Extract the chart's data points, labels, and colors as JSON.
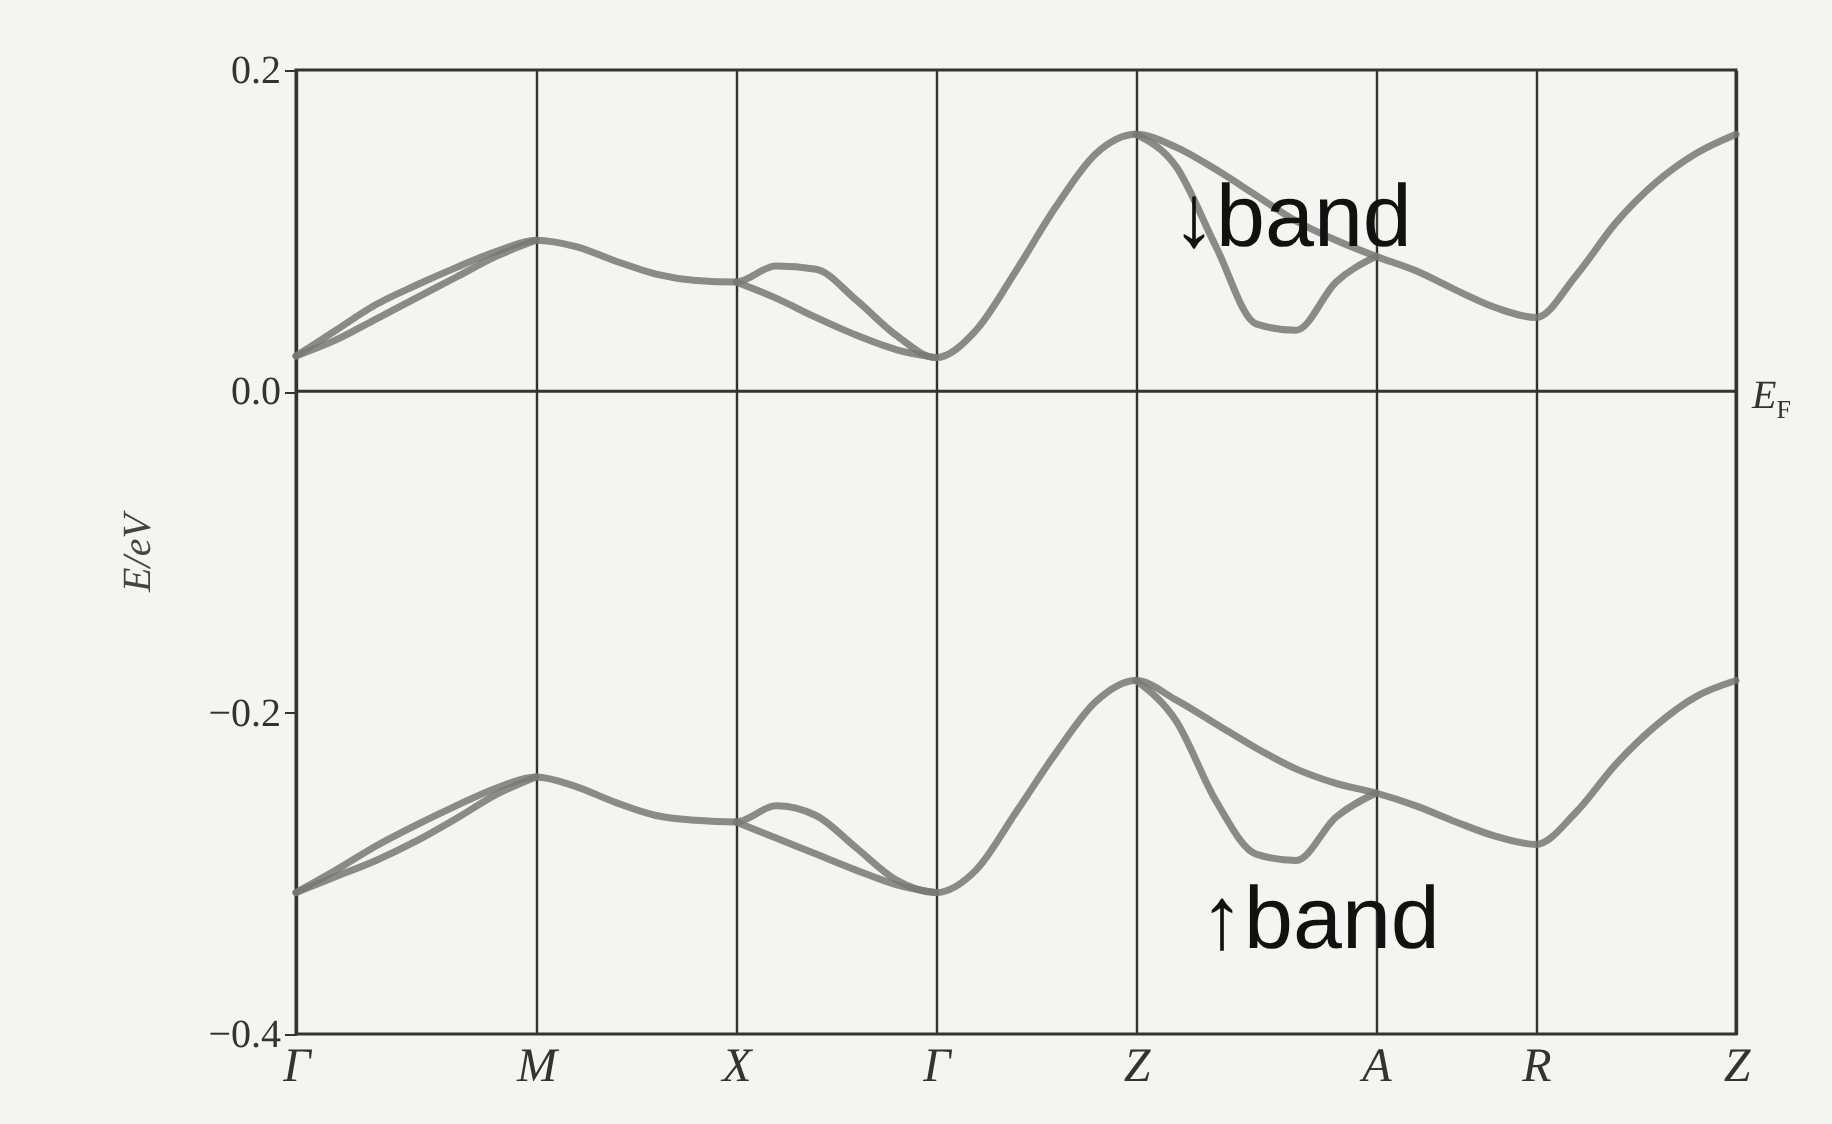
{
  "chart_data": {
    "type": "line",
    "ylabel": "E/eV",
    "categories": [
      "Γ",
      null,
      null,
      null,
      null,
      null,
      "M",
      null,
      null,
      null,
      null,
      "X",
      null,
      null,
      null,
      null,
      "Γ",
      null,
      null,
      null,
      null,
      "Z",
      null,
      null,
      null,
      null,
      null,
      "A",
      null,
      null,
      null,
      "R",
      null,
      null,
      null,
      null,
      "Z"
    ],
    "ylim": [
      -0.4,
      0.2
    ],
    "yticks": [
      0.2,
      {
        "value": 0,
        "label": "0.0"
      },
      -0.2,
      -0.4
    ],
    "grid": "x",
    "marker": "none",
    "line_style": "solid",
    "ref_lines": [
      {
        "axis": "y",
        "value": 0,
        "label": "E$_{F}$",
        "color": "#333333"
      }
    ],
    "annotations": [
      "↓band",
      "↑band"
    ],
    "series": [
      {
        "color": "#777777",
        "values": [
          0.022,
          0.038,
          0.054,
          0.066,
          0.077,
          0.087,
          0.094,
          0.09,
          0.081,
          0.073,
          0.069,
          0.068,
          0.078,
          0.076,
          0.057,
          0.035,
          0.021,
          0.038,
          0.075,
          0.115,
          0.148,
          0.16,
          0.152,
          0.138,
          0.122,
          0.106,
          0.094,
          0.084,
          0.075,
          0.063,
          0.052,
          0.046,
          0.072,
          0.105,
          0.13,
          0.148,
          0.16
        ]
      },
      {
        "color": "#777777",
        "values": [
          0.022,
          0.032,
          0.045,
          0.058,
          0.071,
          0.084,
          0.094,
          null,
          null,
          null,
          null,
          0.068,
          0.058,
          0.046,
          0.035,
          0.026,
          0.021,
          null,
          null,
          null,
          null,
          0.16,
          0.14,
          0.09,
          0.042,
          0.038,
          0.068,
          0.084,
          null,
          null,
          null,
          null,
          null,
          null,
          null,
          null,
          null
        ]
      },
      {
        "color": "#777777",
        "values": [
          -0.312,
          -0.298,
          -0.283,
          -0.27,
          -0.258,
          -0.247,
          -0.24,
          -0.246,
          -0.256,
          -0.264,
          -0.267,
          -0.268,
          -0.258,
          -0.264,
          -0.284,
          -0.304,
          -0.312,
          -0.298,
          -0.262,
          -0.225,
          -0.193,
          -0.18,
          -0.192,
          -0.207,
          -0.222,
          -0.235,
          -0.244,
          -0.25,
          -0.258,
          -0.268,
          -0.277,
          -0.282,
          -0.262,
          -0.232,
          -0.208,
          -0.19,
          -0.18
        ]
      },
      {
        "color": "#777777",
        "values": [
          -0.312,
          -0.302,
          -0.292,
          -0.28,
          -0.266,
          -0.251,
          -0.24,
          null,
          null,
          null,
          null,
          -0.268,
          -0.278,
          -0.288,
          -0.298,
          -0.307,
          -0.312,
          null,
          null,
          null,
          null,
          -0.18,
          -0.205,
          -0.255,
          -0.288,
          -0.292,
          -0.265,
          -0.25,
          null,
          null,
          null,
          null,
          null,
          null,
          null,
          null,
          null
        ]
      }
    ]
  }
}
